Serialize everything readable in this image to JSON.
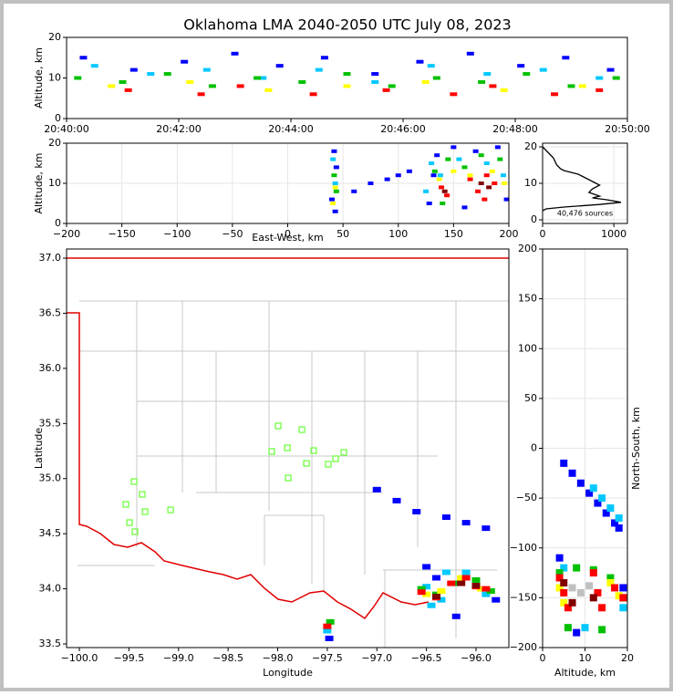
{
  "chart_data": [
    {
      "type": "scatter",
      "title": "Oklahoma LMA 2040-2050 UTC July 08, 2023",
      "ylabel": "Altitude, km",
      "xlim": [
        0,
        10
      ],
      "xticks": [
        {
          "value": 0,
          "label": "20:40:00"
        },
        {
          "value": 2,
          "label": "20:42:00"
        },
        {
          "value": 4,
          "label": "20:44:00"
        },
        {
          "value": 6,
          "label": "20:46:00"
        },
        {
          "value": 8,
          "label": "20:48:00"
        },
        {
          "value": 10,
          "label": "20:50:00"
        }
      ],
      "ylim": [
        0,
        20
      ],
      "yticks": [
        0,
        10,
        20
      ],
      "grid": false,
      "series": [
        {
          "color": "#0000ff",
          "x": [
            0.3,
            1.2,
            2.1,
            3.0,
            3.8,
            4.6,
            5.5,
            6.3,
            7.2,
            8.1,
            8.9,
            9.7
          ],
          "y": [
            15,
            12,
            14,
            16,
            13,
            15,
            11,
            14,
            16,
            13,
            15,
            12
          ]
        },
        {
          "color": "#00c8ff",
          "x": [
            0.5,
            1.5,
            2.5,
            3.5,
            4.5,
            5.5,
            6.5,
            7.5,
            8.5,
            9.5
          ],
          "y": [
            13,
            11,
            12,
            10,
            12,
            9,
            13,
            11,
            12,
            10
          ]
        },
        {
          "color": "#00c000",
          "x": [
            0.2,
            1.0,
            1.8,
            2.6,
            3.4,
            4.2,
            5.0,
            5.8,
            6.6,
            7.4,
            8.2,
            9.0,
            9.8
          ],
          "y": [
            10,
            9,
            11,
            8,
            10,
            9,
            11,
            8,
            10,
            9,
            11,
            8,
            10
          ]
        },
        {
          "color": "#ffff00",
          "x": [
            0.8,
            2.2,
            3.6,
            5.0,
            6.4,
            7.8,
            9.2
          ],
          "y": [
            8,
            9,
            7,
            8,
            9,
            7,
            8
          ]
        },
        {
          "color": "#ff0000",
          "x": [
            1.1,
            2.4,
            3.1,
            4.4,
            5.7,
            6.9,
            7.6,
            8.7,
            9.5
          ],
          "y": [
            7,
            6,
            8,
            6,
            7,
            6,
            8,
            6,
            7
          ]
        }
      ]
    },
    {
      "type": "scatter",
      "xlabel": "East-West, km",
      "ylabel": "Altitude, km",
      "xlim": [
        -200,
        200
      ],
      "xticks": [
        {
          "value": -200,
          "label": "−200"
        },
        {
          "value": -150,
          "label": "−150"
        },
        {
          "value": -100,
          "label": "−100"
        },
        {
          "value": -50,
          "label": "−50"
        },
        0,
        50,
        100,
        150,
        200
      ],
      "ylim": [
        0,
        20
      ],
      "yticks": [
        0,
        10,
        20
      ],
      "grid": true,
      "series": [
        {
          "color": "#0000ff",
          "x": [
            42,
            44,
            40,
            43,
            128,
            135,
            150,
            170,
            190,
            198,
            160,
            132,
            60,
            75,
            90,
            100,
            110
          ],
          "y": [
            18,
            14,
            6,
            3,
            5,
            17,
            19,
            18,
            19,
            6,
            4,
            12,
            8,
            10,
            11,
            12,
            13
          ]
        },
        {
          "color": "#00c8ff",
          "x": [
            41,
            43,
            130,
            138,
            155,
            180,
            195,
            125
          ],
          "y": [
            16,
            10,
            15,
            12,
            16,
            15,
            12,
            8
          ]
        },
        {
          "color": "#00c000",
          "x": [
            42,
            44,
            133,
            145,
            160,
            175,
            192,
            140
          ],
          "y": [
            12,
            8,
            13,
            16,
            14,
            17,
            16,
            5
          ]
        },
        {
          "color": "#ffff00",
          "x": [
            43,
            41,
            137,
            150,
            165,
            185,
            196
          ],
          "y": [
            9,
            5,
            11,
            13,
            12,
            13,
            10
          ]
        },
        {
          "color": "#ff0000",
          "x": [
            139,
            144,
            165,
            172,
            180,
            187,
            178
          ],
          "y": [
            9,
            7,
            11,
            8,
            12,
            10,
            6
          ]
        },
        {
          "color": "#800000",
          "x": [
            142,
            175,
            182
          ],
          "y": [
            8,
            10,
            9
          ]
        }
      ]
    },
    {
      "type": "line",
      "annotation": "40,476 sources",
      "xlim": [
        0,
        1190
      ],
      "xticks": [
        0,
        1000
      ],
      "ylim": [
        -1,
        21
      ],
      "yticks": [
        0,
        10,
        20
      ],
      "grid": true,
      "series": [
        {
          "color": "#000000",
          "x": [
            0,
            50,
            100,
            150,
            200,
            250,
            300,
            500,
            600,
            700,
            800,
            700,
            650,
            800,
            700,
            900,
            1100,
            800,
            300,
            50,
            0
          ],
          "y": [
            20,
            19,
            18,
            17,
            15,
            14,
            13.5,
            12.5,
            11.5,
            10.5,
            9.5,
            8.5,
            7.5,
            6.5,
            6,
            5.5,
            4.8,
            4.2,
            3.5,
            3,
            2.5
          ]
        }
      ]
    },
    {
      "type": "scatter",
      "xlabel": "Longitude",
      "ylabel": "Latitude",
      "xlim": [
        -100.129,
        -95.669
      ],
      "xticks": [
        {
          "value": -100,
          "label": "−100.0"
        },
        {
          "value": -99.5,
          "label": "−99.5"
        },
        {
          "value": -99,
          "label": "−99.0"
        },
        {
          "value": -98.5,
          "label": "−98.5"
        },
        {
          "value": -98,
          "label": "−98.0"
        },
        {
          "value": -97.5,
          "label": "−97.5"
        },
        {
          "value": -97,
          "label": "−97.0"
        },
        {
          "value": -96.5,
          "label": "−96.5"
        },
        {
          "value": -96,
          "label": "−96.0"
        }
      ],
      "ylim": [
        33.467,
        37.083
      ],
      "yticks": [
        33.5,
        {
          "value": 34,
          "label": "34.0"
        },
        34.5,
        {
          "value": 35,
          "label": "35.0"
        },
        35.5,
        {
          "value": 36,
          "label": "36.0"
        },
        36.5,
        {
          "value": 37,
          "label": "37.0"
        }
      ],
      "grid": false,
      "series": [
        {
          "color": "#0000ff",
          "x": [
            -97.0,
            -96.8,
            -96.6,
            -96.3,
            -96.1,
            -95.9,
            -96.5,
            -96.2,
            -95.8,
            -97.48,
            -96.4
          ],
          "y": [
            34.9,
            34.8,
            34.7,
            34.65,
            34.6,
            34.55,
            34.2,
            33.75,
            33.9,
            33.55,
            34.1
          ]
        },
        {
          "color": "#00c8ff",
          "x": [
            -96.5,
            -96.35,
            -96.1,
            -95.9,
            -96.45,
            -97.5,
            -96.3
          ],
          "y": [
            34.02,
            33.9,
            34.15,
            33.95,
            33.85,
            33.62,
            34.15
          ]
        },
        {
          "color": "#00c000",
          "x": [
            -96.4,
            -96.2,
            -96.0,
            -95.85,
            -96.55,
            -97.47
          ],
          "y": [
            33.95,
            34.05,
            34.08,
            33.98,
            34.0,
            33.7
          ]
        },
        {
          "color": "#ffff00",
          "x": [
            -96.35,
            -96.15,
            -95.95,
            -96.5
          ],
          "y": [
            33.98,
            34.1,
            34.0,
            33.95
          ]
        },
        {
          "color": "#ff0000",
          "x": [
            -96.4,
            -96.25,
            -96.1,
            -96.0,
            -95.9,
            -96.55,
            -97.5
          ],
          "y": [
            33.92,
            34.05,
            34.1,
            34.02,
            34.0,
            33.97,
            33.66
          ]
        },
        {
          "color": "#800000",
          "x": [
            -96.4,
            -96.15,
            -96.0
          ],
          "y": [
            33.93,
            34.05,
            34.03
          ]
        },
        {
          "color": "#66ff33",
          "marker": "square-open",
          "x": [
            -97.995,
            -97.756,
            -98.06,
            -97.903,
            -97.637,
            -97.416,
            -97.333,
            -97.71,
            -97.49,
            -97.894,
            -99.448,
            -99.366,
            -99.531,
            -99.338,
            -99.08,
            -99.494,
            -99.439
          ],
          "y": [
            35.478,
            35.444,
            35.246,
            35.279,
            35.254,
            35.18,
            35.238,
            35.138,
            35.13,
            35.006,
            34.973,
            34.857,
            34.766,
            34.7,
            34.716,
            34.601,
            34.518
          ]
        }
      ]
    },
    {
      "type": "scatter",
      "xlabel": "Altitude, km",
      "ylabel": "North-South, km",
      "xlim": [
        0,
        20
      ],
      "xticks": [
        0,
        10,
        20
      ],
      "ylim": [
        -200,
        200
      ],
      "yticks": [
        {
          "value": -200,
          "label": "−200"
        },
        {
          "value": -150,
          "label": "−150"
        },
        {
          "value": -100,
          "label": "−100"
        },
        {
          "value": -50,
          "label": "−50"
        },
        0,
        50,
        100,
        150,
        200
      ],
      "grid": true,
      "series": [
        {
          "color": "#0000ff",
          "x": [
            5,
            7,
            9,
            11,
            13,
            15,
            17,
            18,
            4,
            19,
            8
          ],
          "y": [
            -15,
            -25,
            -35,
            -45,
            -55,
            -65,
            -75,
            -80,
            -110,
            -140,
            -185
          ]
        },
        {
          "color": "#00c8ff",
          "x": [
            12,
            14,
            16,
            18,
            5,
            19,
            10
          ],
          "y": [
            -40,
            -50,
            -60,
            -70,
            -120,
            -160,
            -180
          ]
        },
        {
          "color": "#00c000",
          "x": [
            4,
            8,
            12,
            16,
            19,
            6,
            14
          ],
          "y": [
            -125,
            -120,
            -122,
            -130,
            -150,
            -180,
            -182
          ]
        },
        {
          "color": "#ffff00",
          "x": [
            4,
            16,
            18,
            5
          ],
          "y": [
            -140,
            -135,
            -148,
            -155
          ]
        },
        {
          "color": "#ff0000",
          "x": [
            4,
            6,
            12,
            14,
            17,
            19,
            5,
            13
          ],
          "y": [
            -130,
            -160,
            -125,
            -160,
            -140,
            -150,
            -145,
            -145
          ]
        },
        {
          "color": "#800000",
          "x": [
            5,
            12,
            7
          ],
          "y": [
            -135,
            -150,
            -155
          ]
        },
        {
          "color": "#c0c0c0",
          "x": [
            7,
            9,
            11
          ],
          "y": [
            -140,
            -145,
            -138
          ]
        }
      ]
    }
  ]
}
